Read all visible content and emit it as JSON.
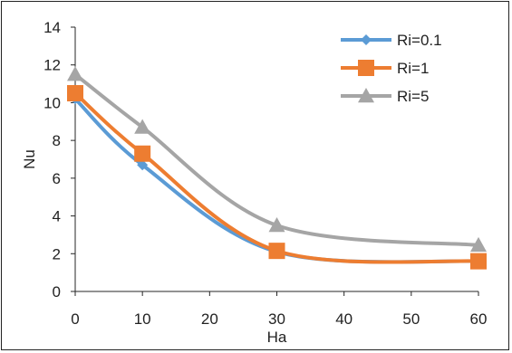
{
  "chart_data": {
    "type": "line",
    "title": "",
    "xlabel": "Ha",
    "ylabel": "Nu",
    "xlim": [
      0,
      60
    ],
    "ylim": [
      0,
      14
    ],
    "x_ticks": [
      "0",
      "10",
      "20",
      "30",
      "40",
      "50",
      "60"
    ],
    "y_ticks": [
      "0",
      "2",
      "4",
      "6",
      "8",
      "10",
      "12",
      "14"
    ],
    "grid": false,
    "smooth": true,
    "legend_position": "top-right",
    "x": [
      0,
      10,
      30,
      60
    ],
    "series": [
      {
        "name": "Ri=0.1",
        "values": [
          10.2,
          6.7,
          2.1,
          1.6
        ],
        "color": "#5B9BD5",
        "marker": "diamond"
      },
      {
        "name": "Ri=1",
        "values": [
          10.5,
          7.3,
          2.15,
          1.6
        ],
        "color": "#ED7D31",
        "marker": "square"
      },
      {
        "name": "Ri=5",
        "values": [
          11.5,
          8.7,
          3.5,
          2.45
        ],
        "color": "#A5A5A5",
        "marker": "triangle"
      }
    ]
  }
}
